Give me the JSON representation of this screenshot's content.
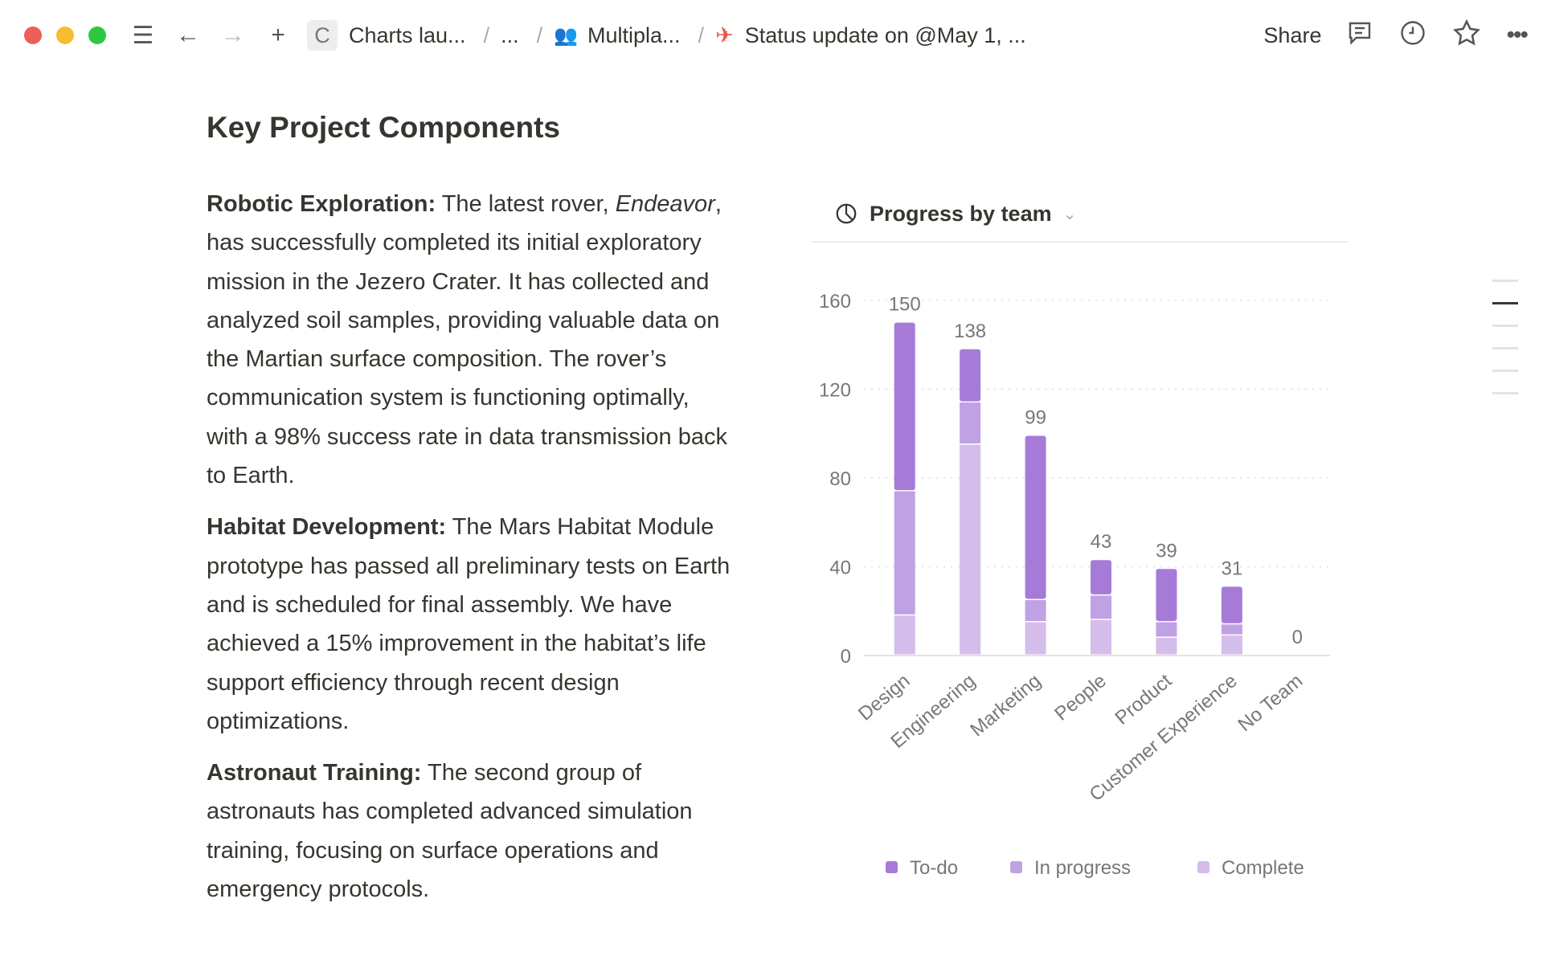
{
  "topbar": {
    "breadcrumbs": [
      {
        "icon": "c-letter",
        "label": "Charts lau..."
      },
      {
        "label": "..."
      },
      {
        "icon": "team-icon",
        "label": "Multipla..."
      },
      {
        "icon": "rocket-icon",
        "label": "Status update on @May 1, ..."
      }
    ],
    "c_letter": "C",
    "share": "Share"
  },
  "page": {
    "title": "Key Project Components",
    "paragraphs": [
      {
        "bold": "Robotic Exploration:",
        "pre": " The latest rover, ",
        "italic": "Endeavor",
        "post": ", has successfully completed its initial exploratory mission in the Jezero Crater. It has collected and analyzed soil samples, providing valuable data on the Martian surface composition. The rover’s communication system is functioning optimally, with a 98% success rate in data transmission back to Earth."
      },
      {
        "bold": "Habitat Development:",
        "pre": " The Mars Habitat Module prototype has passed all preliminary tests on Earth and is scheduled for final assembly. We have achieved a 15% improvement in the habitat’s life support efficiency through recent design optimizations.",
        "italic": "",
        "post": ""
      },
      {
        "bold": "Astronaut Training:",
        "pre": " The second group of astronauts has completed advanced simulation training, focusing on surface operations and emergency protocols.",
        "italic": "",
        "post": ""
      }
    ]
  },
  "chart_data": {
    "type": "bar",
    "stacked": true,
    "title": "Progress by team",
    "categories": [
      "Design",
      "Engineering",
      "Marketing",
      "People",
      "Product",
      "Customer Experience",
      "No Team"
    ],
    "series": [
      {
        "name": "To-do",
        "color": "#a67bd8",
        "values": [
          76,
          24,
          74,
          16,
          24,
          17,
          0
        ]
      },
      {
        "name": "In progress",
        "color": "#c0a1e4",
        "values": [
          56,
          19,
          10,
          11,
          7,
          5,
          0
        ]
      },
      {
        "name": "Complete",
        "color": "#d4bdeb",
        "values": [
          18,
          95,
          15,
          16,
          8,
          9,
          0
        ]
      }
    ],
    "totals": [
      150,
      138,
      99,
      43,
      39,
      31,
      0
    ],
    "ylim": [
      0,
      160
    ],
    "yticks": [
      0,
      40,
      80,
      120,
      160
    ],
    "grid": true,
    "legend": "bottom"
  }
}
